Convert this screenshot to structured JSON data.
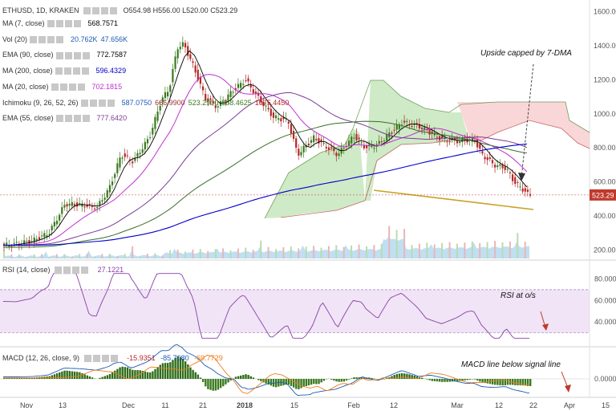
{
  "header": {
    "symbol": "ETHUSD, 1D, KRAKEN",
    "o": "O554.98",
    "h": "H556.00",
    "l": "L520.00",
    "c": "C523.29"
  },
  "indicators": [
    {
      "label": "MA (7, close)",
      "values": [
        "568.7571"
      ],
      "color": "#000000"
    },
    {
      "label": "Vol (20)",
      "values": [
        "20.762K",
        "47.656K"
      ],
      "color": "#1e5ab4"
    },
    {
      "label": "EMA (90, close)",
      "values": [
        "772.7587"
      ],
      "color": "#000000"
    },
    {
      "label": "MA (200, close)",
      "values": [
        "596.4329"
      ],
      "color": "#0000cc"
    },
    {
      "label": "MA (20, close)",
      "values": [
        "702.1815"
      ],
      "color": "#c02fd0"
    },
    {
      "label": "Ichimoku (9, 26, 52, 26)",
      "values": [
        "587.0750",
        "666.9900",
        "523.2900",
        "888.4625",
        "1075.4450"
      ],
      "color": "#1e5ab4"
    },
    {
      "label": "EMA (55, close)",
      "values": [
        "777.6420"
      ],
      "color": "#000000"
    }
  ],
  "rsi_legend": {
    "label": "RSI (14, close)",
    "value": "27.1221"
  },
  "macd_legend": {
    "label": "MACD (12, 26, close, 9)",
    "values": [
      "-15.9351",
      "-85.7080",
      "-69.7729"
    ]
  },
  "annotations": {
    "upside": "Upside capped by 7-DMA",
    "rsi": "RSI at o/s",
    "macd": "MACD line below signal line"
  },
  "price_badge": "523.29",
  "colors": {
    "up": "#3a7a1f",
    "down": "#b32828",
    "rsi": "#8b3fa8",
    "macd": "#1e5ab4",
    "signal": "#ef7d1a",
    "ma200": "#0000cc",
    "ma20": "#c02fd0",
    "cloud_bull": "#bfe3b4",
    "cloud_bear": "#f7c9cb",
    "trend": "#c9a225"
  },
  "chart_data": [
    {
      "type": "candlestick",
      "axis": "price",
      "ylim": [
        150,
        1650
      ],
      "y_ticks": [
        "1600.00",
        "1400.00",
        "1200.00",
        "1000.00",
        "800.00",
        "600.00",
        "400.00",
        "200.00"
      ],
      "x_ticks": [
        "Nov",
        "13",
        "Dec",
        "11",
        "21",
        "2018",
        "15",
        "Feb",
        "12",
        "Mar",
        "12",
        "22",
        "Apr",
        "15"
      ],
      "last_close": 523.29,
      "moving_averages": [
        "MA (7, close)",
        "EMA (90, close)",
        "MA (200, close)",
        "MA (20, close)",
        "EMA (55, close)"
      ]
    },
    {
      "type": "line",
      "axis": "RSI",
      "y_ticks": [
        "80.0000",
        "60.0000",
        "40.0000"
      ],
      "overbought": 70,
      "oversold": 30,
      "last": 27.1221
    },
    {
      "type": "histogram+line",
      "axis": "MACD",
      "y_ticks": [
        "0.0000"
      ],
      "macd": -85.708,
      "signal": -69.7729,
      "histogram": -15.9351
    }
  ]
}
